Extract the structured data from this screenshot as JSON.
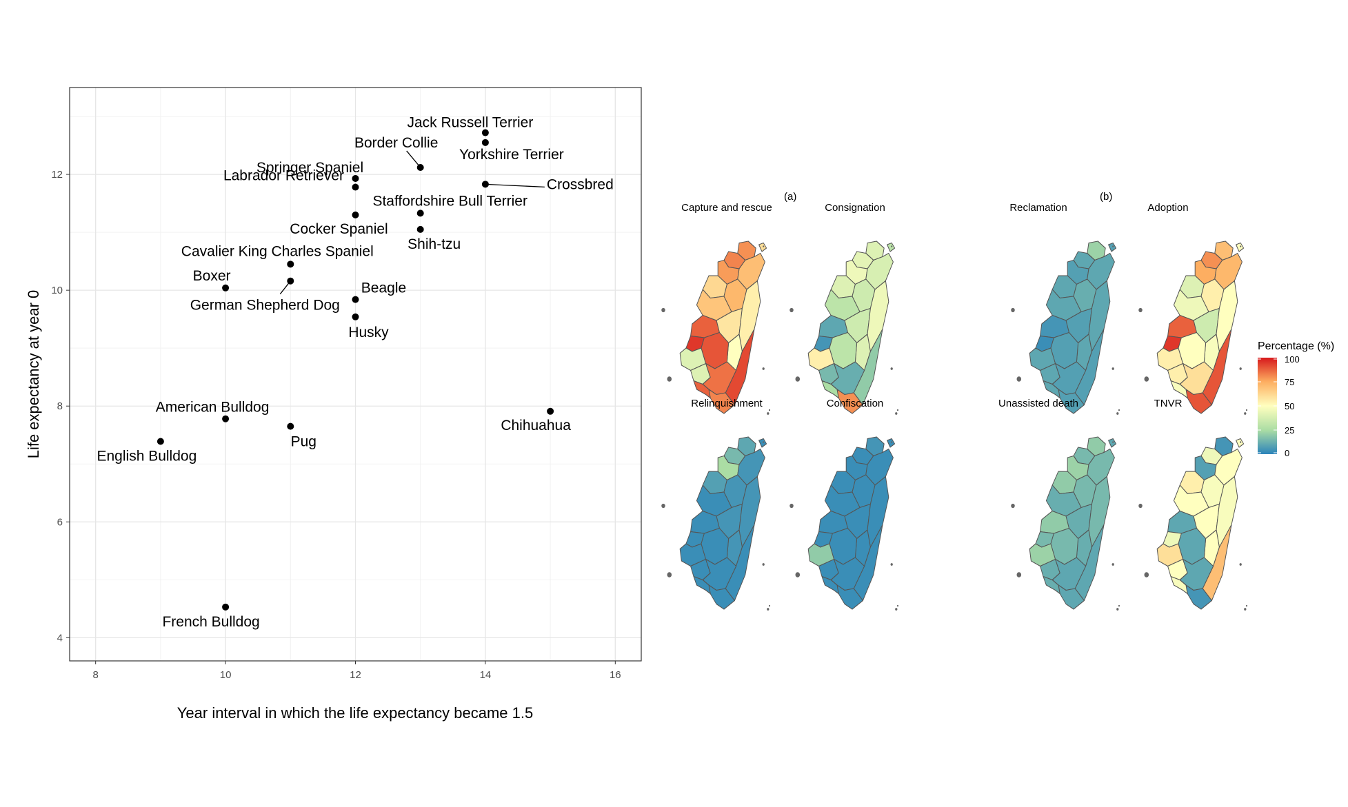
{
  "chart_data": [
    {
      "type": "scatter",
      "title": "",
      "xlabel": "Year interval in which the life expectancy became 1.5",
      "ylabel": "Life expectancy at year 0",
      "xlim": [
        7.6,
        16.4
      ],
      "ylim": [
        3.6,
        13.5
      ],
      "xticks": [
        8,
        10,
        12,
        14,
        16
      ],
      "yticks": [
        4,
        6,
        8,
        10,
        12
      ],
      "grid": true,
      "points": [
        {
          "name": "Jack Russell Terrier",
          "x": 14,
          "y": 12.72
        },
        {
          "name": "Yorkshire Terrier",
          "x": 14,
          "y": 12.55
        },
        {
          "name": "Border Collie",
          "x": 13,
          "y": 12.12
        },
        {
          "name": "Springer Spaniel",
          "x": 12,
          "y": 11.93
        },
        {
          "name": "Crossbred",
          "x": 14,
          "y": 11.83
        },
        {
          "name": "Labrador Retriever",
          "x": 12,
          "y": 11.78
        },
        {
          "name": "Staffordshire Bull Terrier",
          "x": 13,
          "y": 11.33
        },
        {
          "name": "Cocker Spaniel",
          "x": 12,
          "y": 11.3
        },
        {
          "name": "Shih-tzu",
          "x": 13,
          "y": 11.05
        },
        {
          "name": "Cavalier King Charles Spaniel",
          "x": 11,
          "y": 10.45
        },
        {
          "name": "German Shepherd Dog",
          "x": 11,
          "y": 10.16
        },
        {
          "name": "Boxer",
          "x": 10,
          "y": 10.04
        },
        {
          "name": "Beagle",
          "x": 12,
          "y": 9.84
        },
        {
          "name": "Husky",
          "x": 12,
          "y": 9.54
        },
        {
          "name": "Chihuahua",
          "x": 15,
          "y": 7.91
        },
        {
          "name": "American Bulldog",
          "x": 10,
          "y": 7.78
        },
        {
          "name": "Pug",
          "x": 11,
          "y": 7.65
        },
        {
          "name": "English Bulldog",
          "x": 9,
          "y": 7.39
        },
        {
          "name": "French Bulldog",
          "x": 10,
          "y": 4.53
        }
      ]
    },
    {
      "type": "heatmap",
      "title": "",
      "panel_labels": [
        "(a)",
        "(b)"
      ],
      "maps": [
        {
          "title": "Capture and rescue",
          "panel": "(a)",
          "regions": [
            80,
            82,
            78,
            70,
            62,
            72,
            68,
            58,
            55,
            50,
            88,
            95,
            40,
            90,
            92,
            40,
            85,
            82,
            60,
            88
          ]
        },
        {
          "title": "Consignation",
          "panel": "(a)",
          "regions": [
            40,
            42,
            45,
            38,
            40,
            35,
            30,
            35,
            45,
            40,
            10,
            5,
            55,
            30,
            20,
            15,
            12,
            80,
            30,
            25
          ]
        },
        {
          "title": "Reclamation",
          "panel": "(a)",
          "regions": [
            22,
            10,
            8,
            10,
            10,
            12,
            10,
            8,
            10,
            10,
            5,
            3,
            10,
            8,
            8,
            10,
            8,
            8,
            8,
            10
          ]
        },
        {
          "title": "Adoption",
          "panel": "(a)",
          "regions": [
            70,
            80,
            75,
            72,
            40,
            55,
            45,
            35,
            50,
            48,
            88,
            95,
            55,
            50,
            90,
            55,
            60,
            90,
            50,
            48
          ]
        },
        {
          "title": "Relinquishment",
          "panel": "(b)",
          "regions": [
            10,
            15,
            25,
            5,
            8,
            5,
            3,
            5,
            5,
            5,
            3,
            3,
            3,
            3,
            3,
            3,
            3,
            3,
            3,
            3
          ]
        },
        {
          "title": "Confiscation",
          "panel": "(b)",
          "regions": [
            5,
            3,
            3,
            3,
            3,
            3,
            3,
            3,
            3,
            3,
            3,
            3,
            20,
            3,
            3,
            3,
            3,
            3,
            3,
            3
          ]
        },
        {
          "title": "Unassisted death",
          "panel": "(b)",
          "regions": [
            20,
            15,
            22,
            15,
            20,
            15,
            12,
            12,
            15,
            12,
            20,
            15,
            22,
            15,
            10,
            12,
            10,
            10,
            10,
            12
          ]
        },
        {
          "title": "TNVR",
          "panel": "(b)",
          "regions": [
            5,
            45,
            8,
            50,
            55,
            48,
            50,
            50,
            48,
            50,
            10,
            45,
            60,
            10,
            70,
            50,
            10,
            5,
            50,
            48
          ]
        }
      ],
      "legend": {
        "title": "Percentage (%)",
        "ticks": [
          100,
          75,
          50,
          25,
          0
        ],
        "colors": [
          "#d7191c",
          "#fdae61",
          "#ffffbf",
          "#abdda4",
          "#2b83ba"
        ]
      }
    }
  ]
}
